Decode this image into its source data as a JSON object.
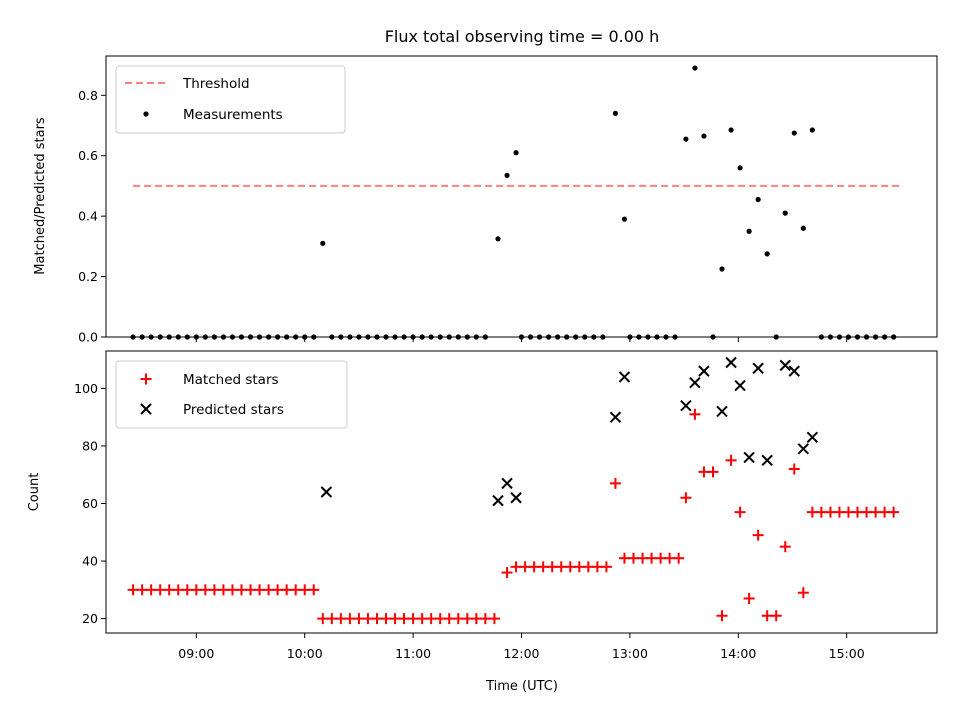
{
  "title": "Flux total observing time = 0.00 h",
  "xlabel": "Time (UTC)",
  "x_ticks": [
    "09:00",
    "10:00",
    "11:00",
    "12:00",
    "13:00",
    "14:00",
    "15:00"
  ],
  "colors": {
    "threshold": "#ff7f7f",
    "measurements": "#000000",
    "matched": "#ff0000",
    "predicted": "#000000"
  },
  "chart_data": [
    {
      "type": "scatter",
      "ylabel": "Matched/Predicted stars",
      "ylim": [
        0,
        0.93
      ],
      "y_ticks": [
        "0.0",
        "0.2",
        "0.4",
        "0.6",
        "0.8"
      ],
      "legend_position": "top-left",
      "xlim": [
        "08:10",
        "15:50"
      ],
      "threshold": {
        "name": "Threshold",
        "value": 0.5,
        "x_range": [
          "08:25",
          "15:30"
        ]
      },
      "series": [
        {
          "name": "Measurements",
          "points": [
            [
              "08:25",
              0
            ],
            [
              "08:30",
              0
            ],
            [
              "08:35",
              0
            ],
            [
              "08:40",
              0
            ],
            [
              "08:45",
              0
            ],
            [
              "08:50",
              0
            ],
            [
              "08:55",
              0
            ],
            [
              "09:00",
              0
            ],
            [
              "09:05",
              0
            ],
            [
              "09:10",
              0
            ],
            [
              "09:15",
              0
            ],
            [
              "09:20",
              0
            ],
            [
              "09:25",
              0
            ],
            [
              "09:30",
              0
            ],
            [
              "09:35",
              0
            ],
            [
              "09:40",
              0
            ],
            [
              "09:45",
              0
            ],
            [
              "09:50",
              0
            ],
            [
              "09:55",
              0
            ],
            [
              "10:00",
              0
            ],
            [
              "10:05",
              0
            ],
            [
              "10:10",
              0.31
            ],
            [
              "10:15",
              0
            ],
            [
              "10:20",
              0
            ],
            [
              "10:25",
              0
            ],
            [
              "10:30",
              0
            ],
            [
              "10:35",
              0
            ],
            [
              "10:40",
              0
            ],
            [
              "10:45",
              0
            ],
            [
              "10:50",
              0
            ],
            [
              "10:55",
              0
            ],
            [
              "11:00",
              0
            ],
            [
              "11:05",
              0
            ],
            [
              "11:10",
              0
            ],
            [
              "11:15",
              0
            ],
            [
              "11:20",
              0
            ],
            [
              "11:25",
              0
            ],
            [
              "11:30",
              0
            ],
            [
              "11:35",
              0
            ],
            [
              "11:40",
              0
            ],
            [
              "11:47",
              0.325
            ],
            [
              "11:52",
              0.535
            ],
            [
              "11:57",
              0.61
            ],
            [
              "12:00",
              0
            ],
            [
              "12:05",
              0
            ],
            [
              "12:10",
              0
            ],
            [
              "12:15",
              0
            ],
            [
              "12:20",
              0
            ],
            [
              "12:25",
              0
            ],
            [
              "12:30",
              0
            ],
            [
              "12:35",
              0
            ],
            [
              "12:40",
              0
            ],
            [
              "12:45",
              0
            ],
            [
              "12:52",
              0.74
            ],
            [
              "12:57",
              0.39
            ],
            [
              "13:00",
              0
            ],
            [
              "13:05",
              0
            ],
            [
              "13:10",
              0
            ],
            [
              "13:15",
              0
            ],
            [
              "13:20",
              0
            ],
            [
              "13:25",
              0
            ],
            [
              "13:31",
              0.655
            ],
            [
              "13:36",
              0.89
            ],
            [
              "13:41",
              0.665
            ],
            [
              "13:46",
              0
            ],
            [
              "13:51",
              0.225
            ],
            [
              "13:56",
              0.685
            ],
            [
              "14:01",
              0.56
            ],
            [
              "14:06",
              0.35
            ],
            [
              "14:11",
              0.455
            ],
            [
              "14:16",
              0.275
            ],
            [
              "14:21",
              0
            ],
            [
              "14:26",
              0.41
            ],
            [
              "14:31",
              0.675
            ],
            [
              "14:36",
              0.36
            ],
            [
              "14:41",
              0.685
            ],
            [
              "14:46",
              0
            ],
            [
              "14:51",
              0
            ],
            [
              "14:56",
              0
            ],
            [
              "15:01",
              0
            ],
            [
              "15:06",
              0
            ],
            [
              "15:11",
              0
            ],
            [
              "15:16",
              0
            ],
            [
              "15:21",
              0
            ],
            [
              "15:26",
              0
            ]
          ]
        }
      ]
    },
    {
      "type": "scatter",
      "ylabel": "Count",
      "ylim": [
        15,
        113
      ],
      "y_ticks": [
        "20",
        "40",
        "60",
        "80",
        "100"
      ],
      "legend_position": "top-left",
      "xlim": [
        "08:10",
        "15:50"
      ],
      "series": [
        {
          "name": "Matched stars",
          "marker": "plus",
          "points": [
            [
              "08:25",
              30
            ],
            [
              "08:30",
              30
            ],
            [
              "08:35",
              30
            ],
            [
              "08:40",
              30
            ],
            [
              "08:45",
              30
            ],
            [
              "08:50",
              30
            ],
            [
              "08:55",
              30
            ],
            [
              "09:00",
              30
            ],
            [
              "09:05",
              30
            ],
            [
              "09:10",
              30
            ],
            [
              "09:15",
              30
            ],
            [
              "09:20",
              30
            ],
            [
              "09:25",
              30
            ],
            [
              "09:30",
              30
            ],
            [
              "09:35",
              30
            ],
            [
              "09:40",
              30
            ],
            [
              "09:45",
              30
            ],
            [
              "09:50",
              30
            ],
            [
              "09:55",
              30
            ],
            [
              "10:00",
              30
            ],
            [
              "10:05",
              30
            ],
            [
              "10:10",
              20
            ],
            [
              "10:15",
              20
            ],
            [
              "10:20",
              20
            ],
            [
              "10:25",
              20
            ],
            [
              "10:30",
              20
            ],
            [
              "10:35",
              20
            ],
            [
              "10:40",
              20
            ],
            [
              "10:45",
              20
            ],
            [
              "10:50",
              20
            ],
            [
              "10:55",
              20
            ],
            [
              "11:00",
              20
            ],
            [
              "11:05",
              20
            ],
            [
              "11:10",
              20
            ],
            [
              "11:15",
              20
            ],
            [
              "11:20",
              20
            ],
            [
              "11:25",
              20
            ],
            [
              "11:30",
              20
            ],
            [
              "11:35",
              20
            ],
            [
              "11:40",
              20
            ],
            [
              "11:45",
              20
            ],
            [
              "11:52",
              36
            ],
            [
              "11:57",
              38
            ],
            [
              "12:02",
              38
            ],
            [
              "12:07",
              38
            ],
            [
              "12:12",
              38
            ],
            [
              "12:17",
              38
            ],
            [
              "12:22",
              38
            ],
            [
              "12:27",
              38
            ],
            [
              "12:32",
              38
            ],
            [
              "12:37",
              38
            ],
            [
              "12:42",
              38
            ],
            [
              "12:47",
              38
            ],
            [
              "12:52",
              67
            ],
            [
              "12:57",
              41
            ],
            [
              "13:02",
              41
            ],
            [
              "13:07",
              41
            ],
            [
              "13:12",
              41
            ],
            [
              "13:17",
              41
            ],
            [
              "13:22",
              41
            ],
            [
              "13:27",
              41
            ],
            [
              "13:31",
              62
            ],
            [
              "13:36",
              91
            ],
            [
              "13:41",
              71
            ],
            [
              "13:46",
              71
            ],
            [
              "13:51",
              21
            ],
            [
              "13:56",
              75
            ],
            [
              "14:01",
              57
            ],
            [
              "14:06",
              27
            ],
            [
              "14:11",
              49
            ],
            [
              "14:16",
              21
            ],
            [
              "14:21",
              21
            ],
            [
              "14:26",
              45
            ],
            [
              "14:31",
              72
            ],
            [
              "14:36",
              29
            ],
            [
              "14:41",
              57
            ],
            [
              "14:46",
              57
            ],
            [
              "14:51",
              57
            ],
            [
              "14:56",
              57
            ],
            [
              "15:01",
              57
            ],
            [
              "15:06",
              57
            ],
            [
              "15:11",
              57
            ],
            [
              "15:16",
              57
            ],
            [
              "15:21",
              57
            ],
            [
              "15:26",
              57
            ]
          ]
        },
        {
          "name": "Predicted stars",
          "marker": "x",
          "points": [
            [
              "10:12",
              64
            ],
            [
              "11:47",
              61
            ],
            [
              "11:52",
              67
            ],
            [
              "11:57",
              62
            ],
            [
              "12:52",
              90
            ],
            [
              "12:57",
              104
            ],
            [
              "13:31",
              94
            ],
            [
              "13:36",
              102
            ],
            [
              "13:41",
              106
            ],
            [
              "13:51",
              92
            ],
            [
              "13:56",
              109
            ],
            [
              "14:01",
              101
            ],
            [
              "14:06",
              76
            ],
            [
              "14:11",
              107
            ],
            [
              "14:16",
              75
            ],
            [
              "14:26",
              108
            ],
            [
              "14:31",
              106
            ],
            [
              "14:36",
              79
            ],
            [
              "14:41",
              83
            ]
          ]
        }
      ]
    }
  ]
}
